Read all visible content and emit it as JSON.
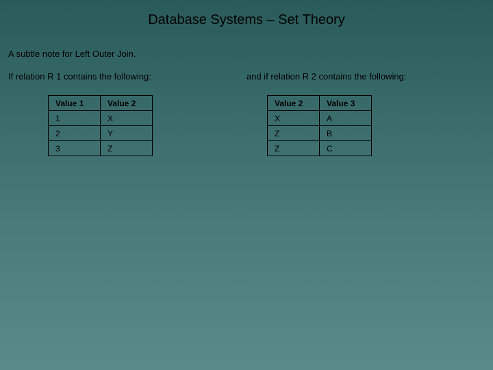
{
  "title": "Database Systems – Set Theory",
  "subtitle": "A subtle note for Left Outer Join.",
  "left": {
    "lead": "If relation R 1 contains the following:",
    "table": {
      "columns": [
        "Value 1",
        "Value 2"
      ],
      "rows": [
        [
          "1",
          "X"
        ],
        [
          "2",
          "Y"
        ],
        [
          "3",
          "Z"
        ]
      ],
      "border_color": "#000000",
      "text_color": "#000000",
      "header_fontweight": "bold",
      "cell_fontsize": 12
    }
  },
  "right": {
    "lead": "and if relation R 2 contains the following:",
    "table": {
      "columns": [
        "Value 2",
        "Value 3"
      ],
      "rows": [
        [
          "X",
          "A"
        ],
        [
          "Z",
          "B"
        ],
        [
          "Z",
          "C"
        ]
      ],
      "border_color": "#000000",
      "text_color": "#000000",
      "header_fontweight": "bold",
      "cell_fontsize": 12
    }
  },
  "styling": {
    "background_gradient_top": "#2a5a5a",
    "background_gradient_bottom": "#5a8a8a",
    "title_color": "#000000",
    "title_fontsize": 20,
    "body_text_color": "#000000",
    "body_fontsize": 13,
    "font_family": "Verdana"
  }
}
